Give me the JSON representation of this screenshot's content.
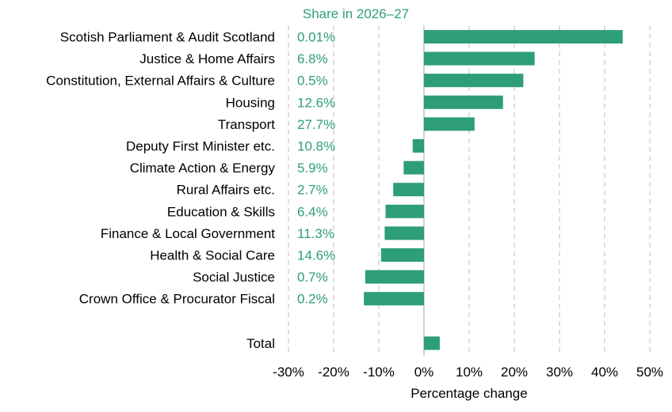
{
  "colors": {
    "bar": "#2e9e78",
    "share_text": "#2e9e78",
    "grid": "#c8c8c8",
    "zero_line": "#b0b0b0",
    "text": "#000000"
  },
  "share_header": "Share in 2026–27",
  "chart_data": {
    "type": "bar",
    "orientation": "horizontal",
    "categories": [
      "Scotish Parliament & Audit Scotland",
      "Justice & Home Affairs",
      "Constitution, External Affairs & Culture",
      "Housing",
      "Transport",
      "Deputy First Minister etc.",
      "Climate Action & Energy",
      "Rural Affairs etc.",
      "Education & Skills",
      "Finance & Local Government",
      "Health & Social Care",
      "Social Justice",
      "Crown Office & Procurator Fiscal",
      "Total"
    ],
    "values": [
      44.0,
      24.5,
      22.0,
      17.5,
      11.2,
      -2.5,
      -4.5,
      -6.8,
      -8.5,
      -8.7,
      -9.5,
      -13.0,
      -13.3,
      3.5
    ],
    "shares": [
      "0.01%",
      "6.8%",
      "0.5%",
      "12.6%",
      "27.7%",
      "10.8%",
      "5.9%",
      "2.7%",
      "6.4%",
      "11.3%",
      "14.6%",
      "0.7%",
      "0.2%",
      ""
    ],
    "xlabel": "Percentage change",
    "xlim": [
      -30,
      50
    ],
    "xticks": [
      -30,
      -20,
      -10,
      0,
      10,
      20,
      30,
      40,
      50
    ],
    "xtick_labels": [
      "-30%",
      "-20%",
      "-10%",
      "0%",
      "10%",
      "20%",
      "30%",
      "40%",
      "50%"
    ],
    "grid": true,
    "grid_style": "dashed vertical"
  }
}
